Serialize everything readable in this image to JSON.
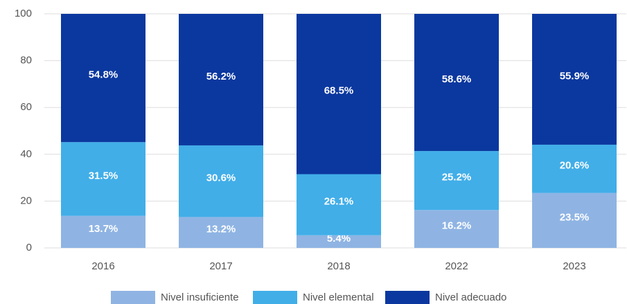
{
  "chart_data": {
    "type": "stacked-bar",
    "categories": [
      "2016",
      "2017",
      "2018",
      "2022",
      "2023"
    ],
    "series": [
      {
        "name": "Nivel insuficiente",
        "color": "#8fb4e3",
        "values": [
          13.7,
          13.2,
          5.4,
          16.2,
          23.5
        ],
        "value_labels": [
          "13.7%",
          "13.2%",
          "5.4%",
          "16.2%",
          "23.5%"
        ]
      },
      {
        "name": "Nivel elemental",
        "color": "#41aee8",
        "values": [
          31.5,
          30.6,
          26.1,
          25.2,
          20.6
        ],
        "value_labels": [
          "31.5%",
          "30.6%",
          "26.1%",
          "25.2%",
          "20.6%"
        ]
      },
      {
        "name": "Nivel adecuado",
        "color": "#0b389f",
        "values": [
          54.8,
          56.2,
          68.5,
          58.6,
          55.9
        ],
        "value_labels": [
          "54.8%",
          "56.2%",
          "68.5%",
          "58.6%",
          "55.9%"
        ]
      }
    ],
    "ylim": [
      0,
      100
    ],
    "yticks": [
      0,
      20,
      40,
      60,
      80,
      100
    ],
    "grid": true,
    "legend": "bottom"
  }
}
